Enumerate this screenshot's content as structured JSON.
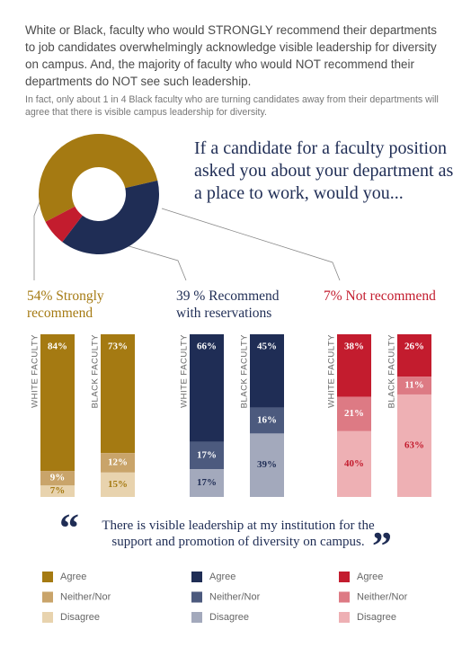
{
  "header": {
    "text": "White or Black, faculty who would STRONGLY recommend their departments to job candidates overwhelmingly acknowledge visible leadership for diversity on campus. And, the majority of faculty who would NOT recommend their departments do NOT see such leadership.",
    "note": "In fact, only about 1 in 4 Black faculty who are turning candidates away from their departments will agree that there is visible campus leadership for diversity."
  },
  "question": "If a candidate for a faculty position asked you about your department as a place to work, would you...",
  "quote": "There is visible leadership at my institution for the support and promotion of diversity on campus.",
  "chart_data": [
    {
      "type": "pie",
      "values": [
        54,
        39,
        7
      ],
      "colors": [
        "#a57a12",
        "#1f2d55",
        "#c31c2e"
      ]
    },
    {
      "type": "stacked-bar",
      "title": "54% Strongly recommend",
      "title_color": "#a57a12",
      "categories": [
        "WHITE FACULTY",
        "BLACK FACULTY"
      ],
      "series": [
        {
          "name": "Agree",
          "color": "#a57a12",
          "values": [
            84,
            73
          ],
          "value_labels": [
            "84%",
            "73%"
          ]
        },
        {
          "name": "Neither/Nor",
          "color": "#c9a46a",
          "values": [
            9,
            12
          ],
          "value_labels": [
            "9%",
            "12%"
          ]
        },
        {
          "name": "Disagree",
          "color": "#e8d3ae",
          "values": [
            7,
            15
          ],
          "value_labels": [
            "7%",
            "15%"
          ]
        }
      ]
    },
    {
      "type": "stacked-bar",
      "title": "39 % Recommend with reservations",
      "title_color": "#1f2d55",
      "categories": [
        "WHITE FACULTY",
        "BLACK FACULTY"
      ],
      "series": [
        {
          "name": "Agree",
          "color": "#1f2d55",
          "values": [
            66,
            45
          ],
          "value_labels": [
            "66%",
            "45%"
          ]
        },
        {
          "name": "Neither/Nor",
          "color": "#4c5a7e",
          "values": [
            17,
            16
          ],
          "value_labels": [
            "17%",
            "16%"
          ]
        },
        {
          "name": "Disagree",
          "color": "#a3a9bc",
          "values": [
            17,
            39
          ],
          "value_labels": [
            "17%",
            "39%"
          ]
        }
      ]
    },
    {
      "type": "stacked-bar",
      "title": "7% Not recommend",
      "title_color": "#c31c2e",
      "categories": [
        "WHITE FACULTY",
        "BLACK FACULTY"
      ],
      "series": [
        {
          "name": "Agree",
          "color": "#c31c2e",
          "values": [
            38,
            26
          ],
          "value_labels": [
            "38%",
            "26%"
          ]
        },
        {
          "name": "Neither/Nor",
          "color": "#dd7a84",
          "values": [
            21,
            11
          ],
          "value_labels": [
            "21%",
            "11%"
          ]
        },
        {
          "name": "Disagree",
          "color": "#eeb0b4",
          "values": [
            40,
            63
          ],
          "value_labels": [
            "40%",
            "63%"
          ]
        }
      ]
    }
  ]
}
